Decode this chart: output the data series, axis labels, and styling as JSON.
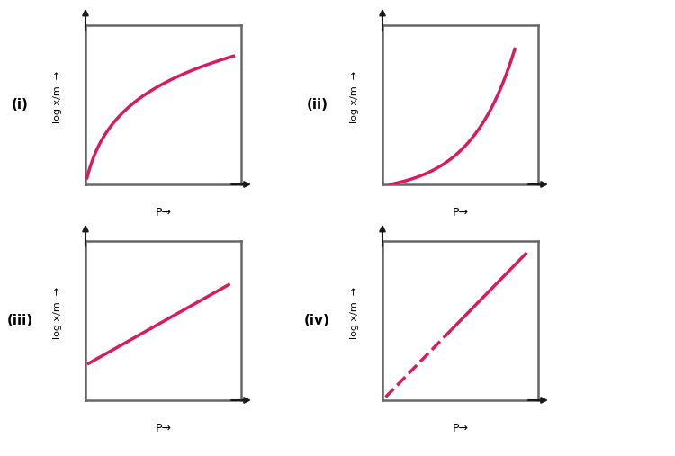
{
  "background_color": "#ffffff",
  "curve_color": "#d81b60",
  "axis_color": "#555555",
  "label_color": "#000000",
  "panel_labels": [
    "(i)",
    "(ii)",
    "(iii)",
    "(iv)"
  ],
  "line_width": 2.5,
  "dashed_color": "#d81b60",
  "arrow_color": "#1a1a1a",
  "box_color": "#666666"
}
